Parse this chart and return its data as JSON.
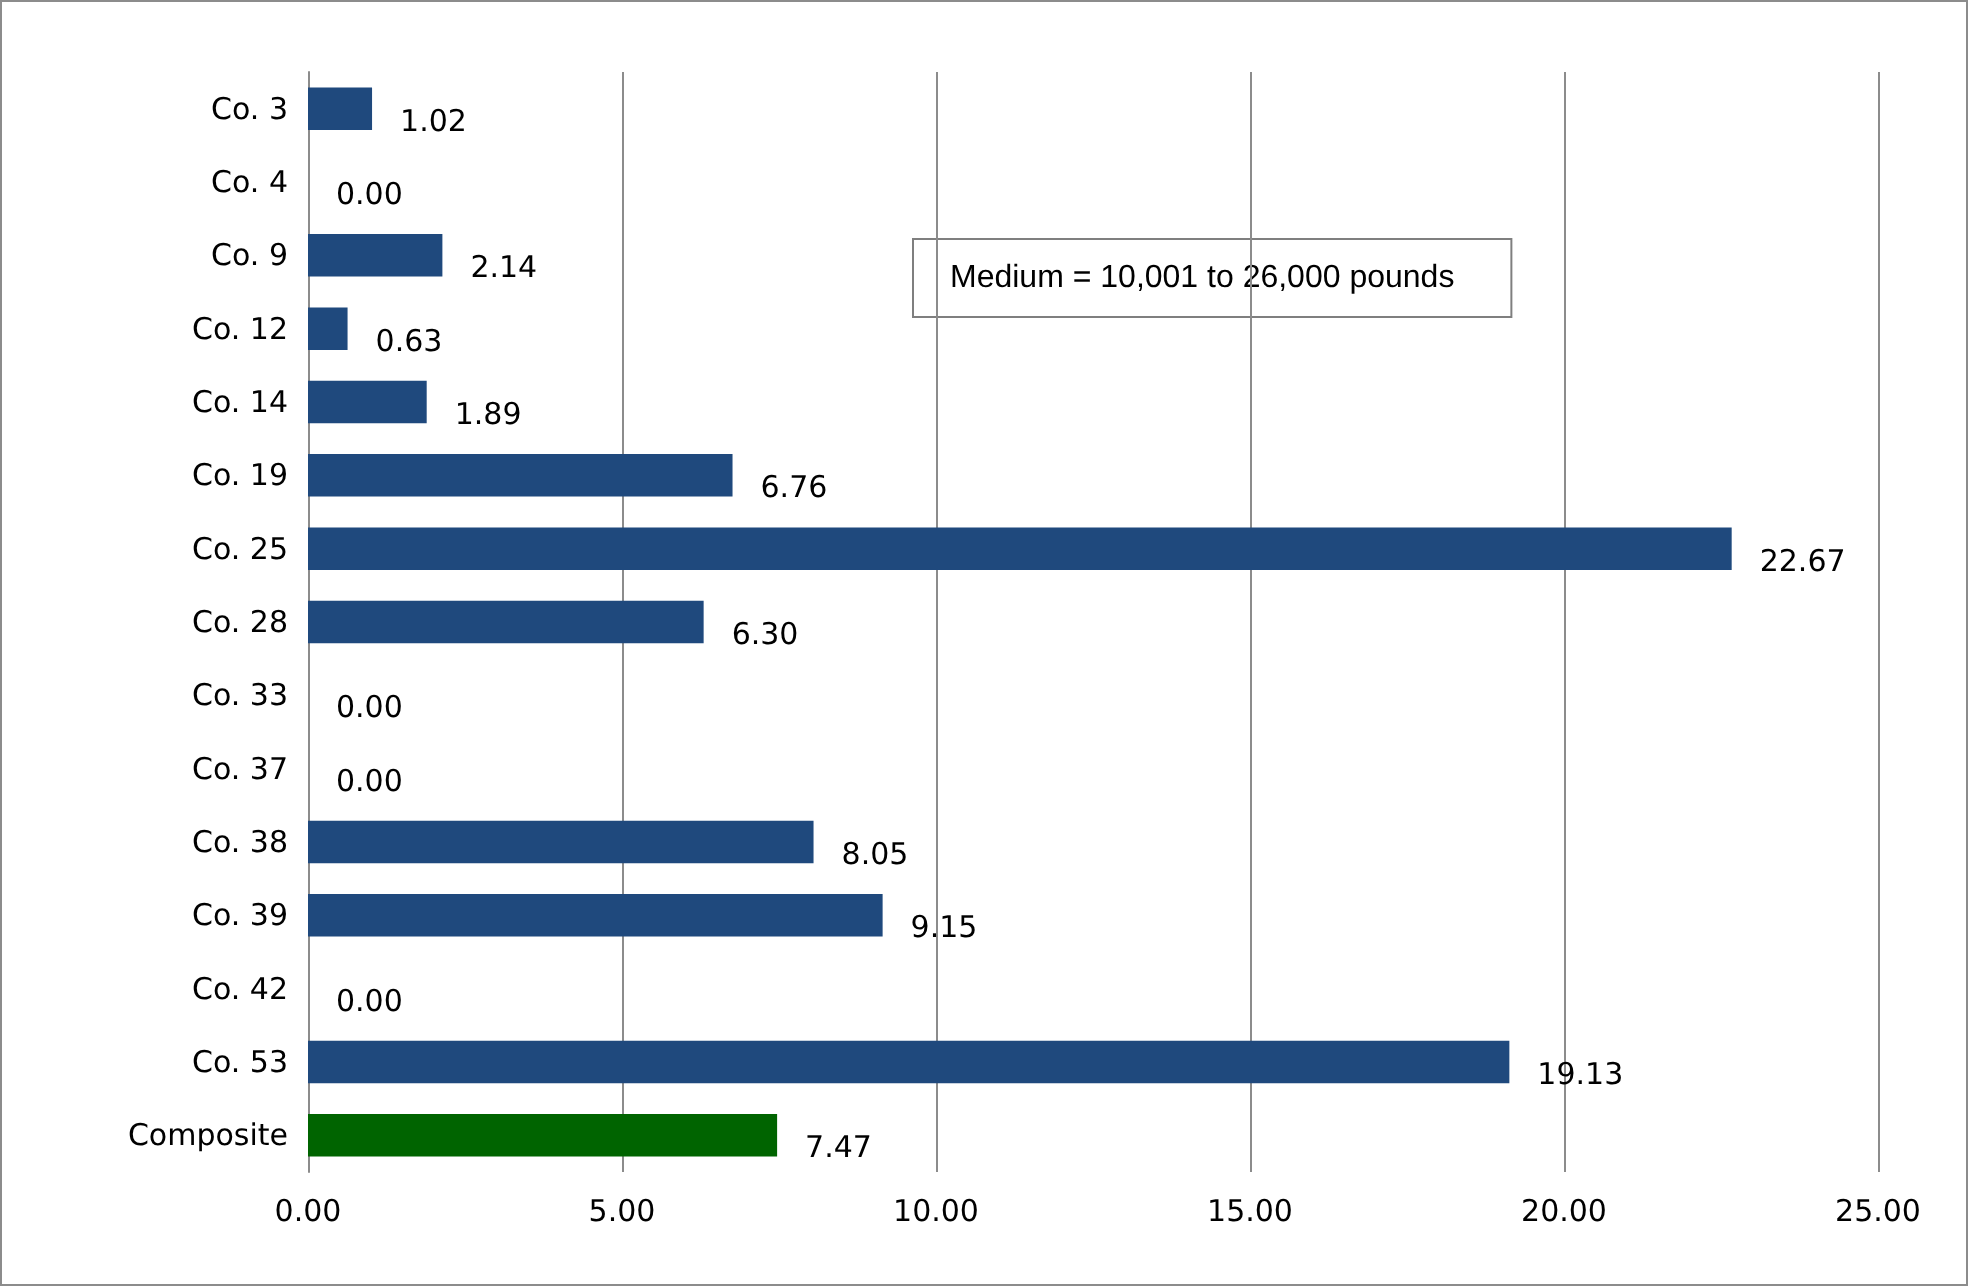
{
  "chart_data": {
    "type": "bar",
    "orientation": "horizontal",
    "categories": [
      "Co. 3",
      "Co. 4",
      "Co. 9",
      "Co. 12",
      "Co. 14",
      "Co. 19",
      "Co. 25",
      "Co. 28",
      "Co. 33",
      "Co. 37",
      "Co. 38",
      "Co. 39",
      "Co. 42",
      "Co. 53",
      "Composite"
    ],
    "values": [
      1.02,
      0,
      2.14,
      0.63,
      1.89,
      6.76,
      22.67,
      6.3,
      0,
      0,
      8.05,
      9.15,
      0,
      19.13,
      7.47
    ],
    "colors": [
      "#1f497d",
      "#1f497d",
      "#1f497d",
      "#1f497d",
      "#1f497d",
      "#1f497d",
      "#1f497d",
      "#1f497d",
      "#1f497d",
      "#1f497d",
      "#1f497d",
      "#1f497d",
      "#1f497d",
      "#1f497d",
      "#006400"
    ],
    "value_labels": [
      "1.02",
      "0.00",
      "2.14",
      "0.63",
      "1.89",
      "6.76",
      "22.67",
      "6.30",
      "0.00",
      "0.00",
      "8.05",
      "9.15",
      "0.00",
      "19.13",
      "7.47"
    ],
    "xlim": [
      0,
      25
    ],
    "xticks": [
      {
        "value": 0,
        "label": "0.00"
      },
      {
        "value": 5,
        "label": "5.00"
      },
      {
        "value": 10,
        "label": "10.00"
      },
      {
        "value": 15,
        "label": "15.00"
      },
      {
        "value": 20,
        "label": "20.00"
      },
      {
        "value": 25,
        "label": "25.00"
      }
    ],
    "grid": "x",
    "annotations": [
      "Medium = 10,001 to 26,000 pounds"
    ]
  }
}
